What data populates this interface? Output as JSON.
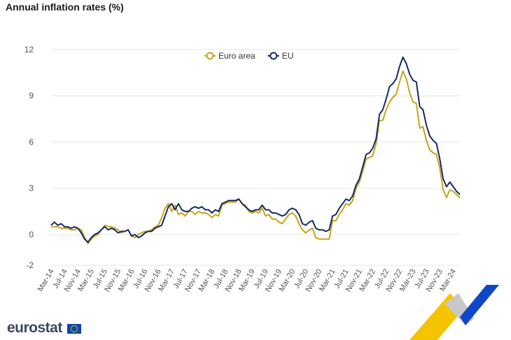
{
  "chart_data": {
    "type": "line",
    "title": "Annual inflation rates (%)",
    "xlabel": "",
    "ylabel": "",
    "ylim": [
      -2,
      12
    ],
    "yticks": [
      12,
      9,
      6,
      3,
      0,
      -2
    ],
    "legend_position": "top-center",
    "grid": true,
    "x_tick_labels": [
      "Mar-14",
      "Jul-14",
      "Nov-14",
      "Mar-15",
      "Jul-15",
      "Nov-15",
      "Mar-16",
      "Jul-16",
      "Nov-16",
      "Mar-17",
      "Jul-17",
      "Nov-17",
      "Mar-18",
      "Jul-18",
      "Nov-18",
      "Mar-19",
      "Jul-19",
      "Nov-19",
      "Mar-20",
      "Jul-20",
      "Nov-20",
      "Mar-21",
      "Jul-21",
      "Nov-21",
      "Mar-22",
      "Jul-22",
      "Nov-22",
      "Mar-23",
      "Jul-23",
      "Nov-23",
      "Mar-24"
    ],
    "series": [
      {
        "name": "Euro area",
        "color": "#c8a318",
        "values": [
          0.5,
          0.5,
          0.5,
          0.4,
          0.4,
          0.4,
          0.3,
          0.3,
          0.4,
          0.3,
          -0.2,
          -0.6,
          -0.3,
          -0.1,
          0.0,
          0.3,
          0.6,
          0.5,
          0.5,
          0.4,
          0.3,
          0.1,
          0.2,
          0.3,
          -0.1,
          -0.2,
          0.0,
          0.1,
          0.2,
          0.2,
          0.3,
          0.5,
          0.6,
          1.1,
          1.7,
          2.0,
          1.5,
          1.9,
          1.3,
          1.4,
          1.2,
          1.5,
          1.5,
          1.3,
          1.5,
          1.4,
          1.4,
          1.3,
          1.1,
          1.3,
          1.2,
          1.9,
          2.0,
          2.1,
          2.1,
          2.1,
          2.3,
          2.0,
          1.9,
          1.5,
          1.4,
          1.5,
          1.4,
          1.7,
          1.2,
          1.3,
          1.0,
          1.0,
          0.8,
          0.7,
          1.0,
          1.3,
          1.4,
          1.2,
          0.7,
          0.3,
          0.1,
          0.3,
          0.4,
          -0.2,
          -0.3,
          -0.3,
          -0.3,
          -0.3,
          0.9,
          0.9,
          1.3,
          1.6,
          2.0,
          1.9,
          2.2,
          3.0,
          3.4,
          4.1,
          4.9,
          5.0,
          5.1,
          5.9,
          7.4,
          7.4,
          8.1,
          8.6,
          8.9,
          9.1,
          9.9,
          10.6,
          10.1,
          9.2,
          8.6,
          8.5,
          6.9,
          7.0,
          6.1,
          5.5,
          5.3,
          5.2,
          4.3,
          2.9,
          2.4,
          2.9,
          2.8,
          2.6,
          2.4
        ]
      },
      {
        "name": "EU",
        "color": "#142a66",
        "values": [
          0.6,
          0.8,
          0.6,
          0.7,
          0.5,
          0.5,
          0.4,
          0.5,
          0.4,
          0.1,
          -0.3,
          -0.5,
          -0.2,
          0.0,
          0.1,
          0.3,
          0.5,
          0.3,
          0.4,
          0.3,
          0.1,
          0.2,
          0.2,
          0.3,
          -0.1,
          0.0,
          -0.2,
          -0.1,
          0.1,
          0.2,
          0.2,
          0.4,
          0.5,
          0.6,
          1.2,
          1.8,
          2.0,
          1.6,
          2.0,
          1.6,
          1.5,
          1.5,
          1.7,
          1.8,
          1.7,
          1.8,
          1.6,
          1.6,
          1.4,
          1.6,
          1.5,
          2.0,
          2.1,
          2.2,
          2.2,
          2.2,
          2.3,
          2.0,
          1.8,
          1.6,
          1.5,
          1.6,
          1.6,
          1.9,
          1.6,
          1.6,
          1.4,
          1.4,
          1.3,
          1.2,
          1.3,
          1.6,
          1.7,
          1.6,
          1.3,
          0.7,
          0.6,
          0.8,
          0.9,
          0.4,
          0.3,
          0.3,
          0.2,
          0.3,
          1.2,
          1.3,
          1.7,
          2.0,
          2.3,
          2.2,
          2.5,
          3.2,
          3.6,
          4.4,
          5.2,
          5.3,
          5.6,
          6.2,
          7.8,
          8.1,
          8.8,
          9.6,
          9.8,
          10.1,
          10.9,
          11.5,
          11.1,
          10.4,
          10.0,
          9.9,
          8.3,
          8.1,
          7.1,
          6.4,
          6.1,
          5.9,
          4.9,
          3.6,
          3.1,
          3.4,
          3.1,
          2.8,
          2.6
        ]
      }
    ]
  },
  "branding": {
    "logo_text": "eurostat",
    "flag_color": "#0e47a1",
    "flag_star_color": "#f5cf1d",
    "corner_yellow": "#f5c400",
    "corner_blue": "#0e47c7",
    "corner_grey": "#c8c8c8"
  }
}
